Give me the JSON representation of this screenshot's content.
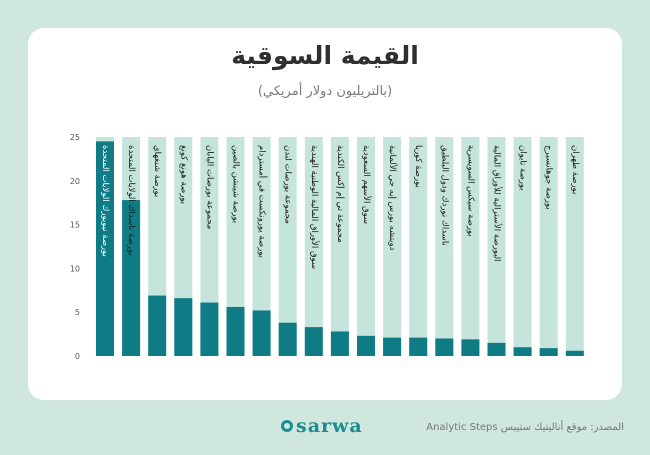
{
  "header": {
    "title": "القيمة السوقية",
    "subtitle": "(بالتريليون دولار أمريكي)"
  },
  "footer": {
    "logo_text": "sarwa",
    "source": "المصدر: موقع أناليتيك ستيبس Analytic Steps"
  },
  "colors": {
    "bar": "#0f7b85",
    "track": "#c5e5dc",
    "card": "#ffffff",
    "background": "#cfe7dd",
    "label_dark": "#1a1a1a",
    "label_light": "#ffffff"
  },
  "chart_data": {
    "type": "bar",
    "title": "القيمة السوقية",
    "subtitle": "(بالتريليون دولار أمريكي)",
    "xlabel": "",
    "ylabel": "",
    "ylim": [
      0,
      25
    ],
    "yticks": [
      0,
      5,
      10,
      15,
      20,
      25
    ],
    "grid": false,
    "categories": [
      "بورصة نيويورك الولايات المتحدة",
      "بورصة ناسداك الولايات المتحدة",
      "بورصة شنغهاي",
      "بورصة هونغ كونغ",
      "مجموعة بورصات اليابان",
      "بورصة شينشن بالصين",
      "بورصة يورونكست في أمستردام",
      "مجموعة بورصات لندن",
      "سوق الأوراق المالية الوطنية الهندية",
      "مجموعة تي إم إكس الكندية",
      "سوق الأسهم السعودية",
      "دويتشه بورس إيه جي الألمانية",
      "بورصة كوريا",
      "ناسداك نوردك ودول البلطيق",
      "بورصة سيكس السويسرية",
      "البورصة الأسترالية للأوراق المالية",
      "بورصة تايوان",
      "بورصة جوهانسبرج",
      "بورصة طهران"
    ],
    "values": [
      24.5,
      17.8,
      6.9,
      6.6,
      6.1,
      5.6,
      5.2,
      3.8,
      3.3,
      2.8,
      2.3,
      2.1,
      2.1,
      2.0,
      1.9,
      1.5,
      1.0,
      0.9,
      0.6
    ]
  }
}
